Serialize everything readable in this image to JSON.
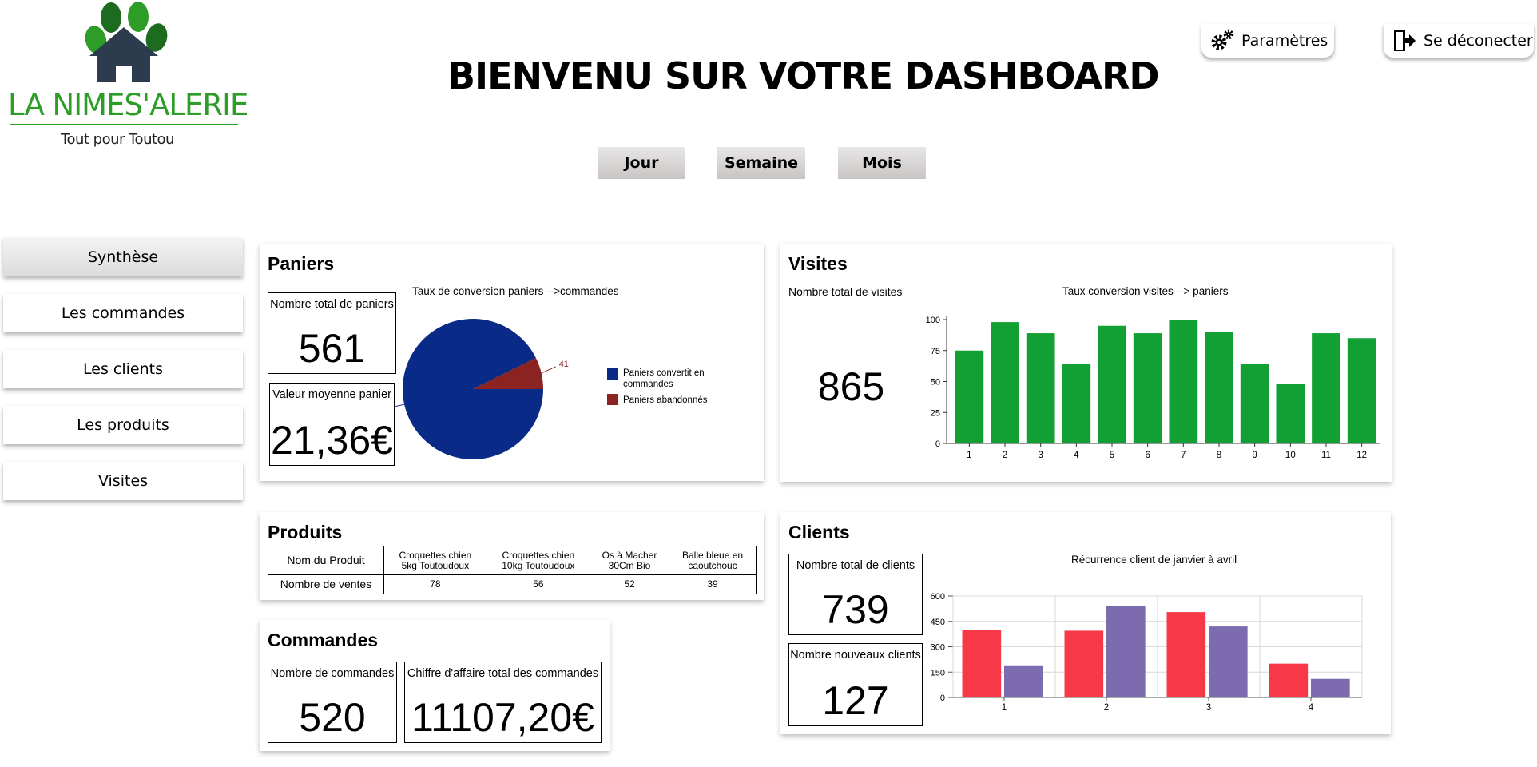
{
  "brand": {
    "name": "LA NIMES'ALERIE",
    "tagline": "Tout pour Toutou"
  },
  "header": {
    "title": "BIENVENU SUR VOTRE DASHBOARD",
    "settings_label": "Paramètres",
    "logout_label": "Se déconecter"
  },
  "periods": [
    "Jour",
    "Semaine",
    "Mois"
  ],
  "sidebar": {
    "items": [
      {
        "label": "Synthèse",
        "active": true
      },
      {
        "label": "Les commandes",
        "active": false
      },
      {
        "label": "Les clients",
        "active": false
      },
      {
        "label": "Les produits",
        "active": false
      },
      {
        "label": "Visites",
        "active": false
      }
    ]
  },
  "paniers": {
    "title": "Paniers",
    "total_label": "Nombre total de paniers",
    "total_value": "561",
    "avg_label": "Valeur moyenne panier",
    "avg_value": "21,36€"
  },
  "visites": {
    "title": "Visites",
    "total_label": "Nombre total de visites",
    "total_value": "865"
  },
  "produits": {
    "title": "Produits",
    "row_headers": [
      "Nom du Produit",
      "Nombre de ventes"
    ],
    "names": [
      [
        "Croquettes  chien",
        "5kg Toutoudoux"
      ],
      [
        "Croquettes  chien",
        "10kg Toutoudoux"
      ],
      [
        "Os à Macher",
        "30Cm Bio"
      ],
      [
        "Balle bleue en",
        "caoutchouc"
      ]
    ],
    "sales": [
      "78",
      "56",
      "52",
      "39"
    ]
  },
  "commandes": {
    "title": "Commandes",
    "count_label": "Nombre de commandes",
    "count_value": "520",
    "revenue_label": "Chiffre d'affaire total des commandes",
    "revenue_value": "11107,20€"
  },
  "clients": {
    "title": "Clients",
    "total_label": "Nombre total de clients",
    "total_value": "739",
    "new_label": "Nombre nouveaux clients",
    "new_value": "127"
  },
  "colors": {
    "pie_converted": "#0a2a87",
    "pie_abandoned": "#8b2323",
    "bar_green": "#12a035",
    "bar_red": "#f73847",
    "bar_purple": "#7d6bb0",
    "logo_green": "#2e9d28",
    "logo_dark_green": "#1c6b1f",
    "logo_house": "#2d3b4e"
  },
  "icons": {
    "settings": "gears-icon",
    "logout": "sign-out-icon",
    "logo": "paw-house-icon"
  },
  "chart_data": [
    {
      "type": "pie",
      "title": "Taux de conversion paniers -->commandes",
      "labels": [
        "Paniers convertit en commandes",
        "Paniers abandonnés"
      ],
      "values": [
        520,
        41
      ]
    },
    {
      "type": "bar",
      "title": "Taux conversion visites --> paniers",
      "categories": [
        "1",
        "2",
        "3",
        "4",
        "5",
        "6",
        "7",
        "8",
        "9",
        "10",
        "11",
        "12"
      ],
      "values": [
        75,
        98,
        89,
        64,
        95,
        89,
        100,
        90,
        64,
        48,
        89,
        85
      ],
      "ylim": [
        0,
        100
      ],
      "yticks": [
        0,
        25,
        50,
        75,
        100
      ]
    },
    {
      "type": "bar",
      "title": "Récurrence client de janvier à avril",
      "categories": [
        "1",
        "2",
        "3",
        "4"
      ],
      "series": [
        {
          "values": [
            400,
            395,
            505,
            200
          ]
        },
        {
          "values": [
            190,
            540,
            420,
            110
          ]
        }
      ],
      "ylim": [
        0,
        600
      ],
      "yticks": [
        0,
        150,
        300,
        450,
        600
      ],
      "grid": true
    }
  ]
}
